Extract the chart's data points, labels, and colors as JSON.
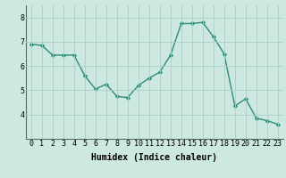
{
  "x": [
    0,
    1,
    2,
    3,
    4,
    5,
    6,
    7,
    8,
    9,
    10,
    11,
    12,
    13,
    14,
    15,
    16,
    17,
    18,
    19,
    20,
    21,
    22,
    23
  ],
  "y": [
    6.9,
    6.85,
    6.45,
    6.45,
    6.45,
    5.6,
    5.05,
    5.25,
    4.75,
    4.7,
    5.2,
    5.5,
    5.75,
    6.45,
    7.75,
    7.75,
    7.8,
    7.2,
    6.5,
    4.35,
    4.65,
    3.85,
    3.75,
    3.6
  ],
  "line_color": "#2e8b75",
  "marker": "D",
  "marker_size": 2.2,
  "line_width": 1.0,
  "bg_color": "#cce8e0",
  "grid_color": "#aacfc7",
  "xlabel": "Humidex (Indice chaleur)",
  "ylim": [
    3.0,
    8.5
  ],
  "xlim": [
    -0.5,
    23.5
  ],
  "xlabel_fontsize": 7,
  "tick_fontsize": 6,
  "yticks": [
    4,
    5,
    6,
    7,
    8
  ]
}
